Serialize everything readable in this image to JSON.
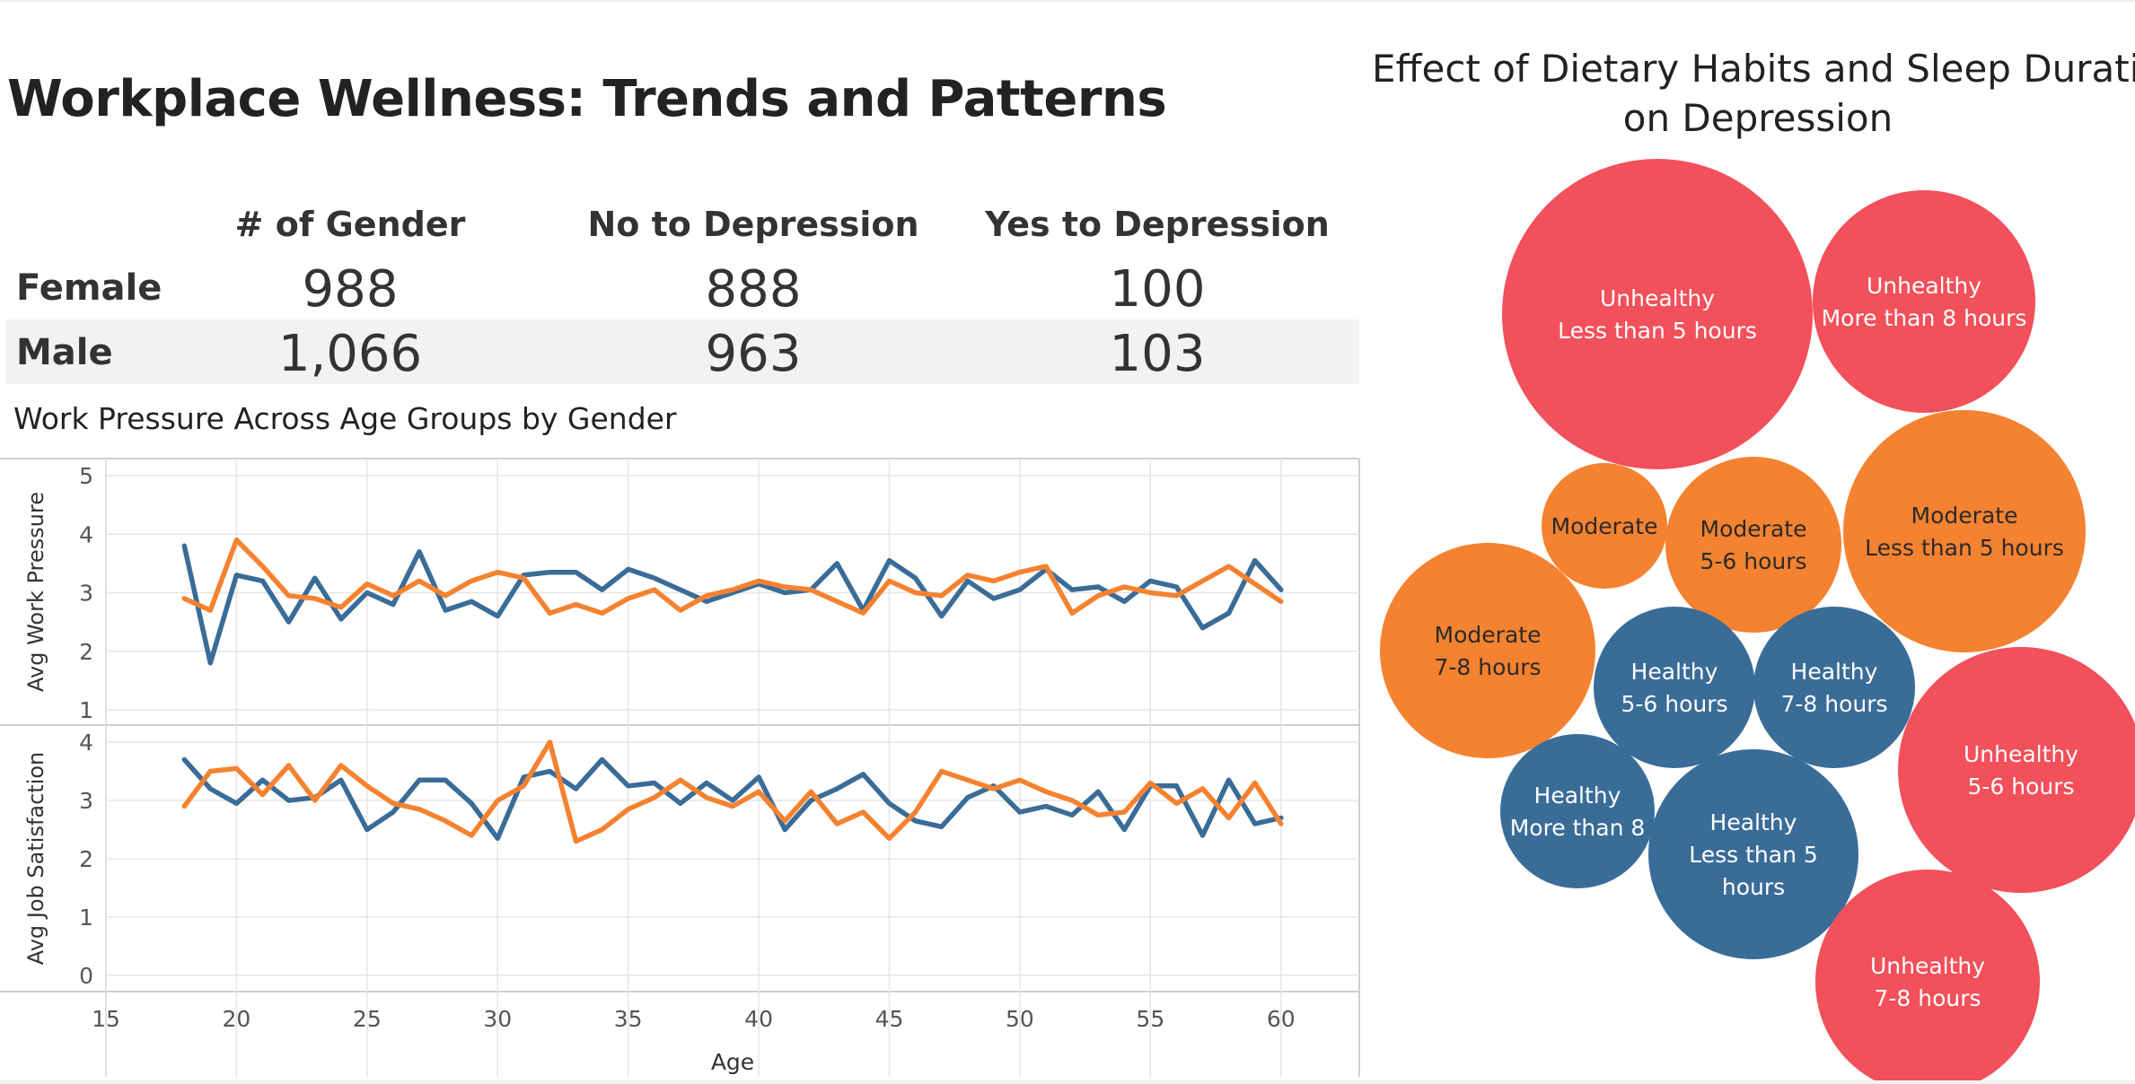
{
  "dashboard": {
    "title": "Workplace Wellness: Trends and Patterns"
  },
  "summary_table": {
    "columns": [
      "# of Gender",
      "No to Depression",
      "Yes to Depression"
    ],
    "rows": [
      {
        "label": "Female",
        "values": [
          "988",
          "888",
          "100"
        ]
      },
      {
        "label": "Male",
        "values": [
          "1,066",
          "963",
          "103"
        ]
      }
    ]
  },
  "colors": {
    "male": "#3a6c98",
    "female": "#f58230",
    "unhealthy": "#f2505a",
    "moderate": "#f58230",
    "healthy": "#3a6c98",
    "grid": "#e6e6e6",
    "axis_text": "#555555"
  },
  "chart_data": [
    {
      "type": "line",
      "title": "Work Pressure Across Age Groups by Gender",
      "xlabel": "Age",
      "x_ticks": [
        15,
        20,
        25,
        30,
        35,
        40,
        45,
        50,
        55,
        60
      ],
      "x": [
        18,
        19,
        20,
        21,
        22,
        23,
        24,
        25,
        26,
        27,
        28,
        29,
        30,
        31,
        32,
        33,
        34,
        35,
        36,
        37,
        38,
        39,
        40,
        41,
        42,
        43,
        44,
        45,
        46,
        47,
        48,
        49,
        50,
        51,
        52,
        53,
        54,
        55,
        56,
        57,
        58,
        59,
        60
      ],
      "xlim": [
        15,
        63
      ],
      "panels": [
        {
          "ylabel": "Avg Work Pressure",
          "ylim": [
            1,
            5
          ],
          "y_ticks": [
            1,
            2,
            3,
            4,
            5
          ],
          "series": [
            {
              "color": "#3a6c98",
              "values": [
                3.8,
                1.8,
                3.3,
                3.2,
                2.5,
                3.25,
                2.55,
                3.0,
                2.8,
                3.7,
                2.7,
                2.85,
                2.6,
                3.3,
                3.35,
                3.35,
                3.05,
                3.4,
                3.25,
                3.05,
                2.85,
                3.0,
                3.15,
                3.0,
                3.05,
                3.5,
                2.7,
                3.55,
                3.25,
                2.6,
                3.2,
                2.9,
                3.05,
                3.4,
                3.05,
                3.1,
                2.85,
                3.2,
                3.1,
                2.4,
                2.65,
                3.55,
                3.05
              ]
            },
            {
              "color": "#f58230",
              "values": [
                2.9,
                2.7,
                3.9,
                3.45,
                2.95,
                2.9,
                2.75,
                3.15,
                2.95,
                3.2,
                2.95,
                3.2,
                3.35,
                3.25,
                2.65,
                2.8,
                2.65,
                2.9,
                3.05,
                2.7,
                2.95,
                3.05,
                3.2,
                3.1,
                3.05,
                2.85,
                2.65,
                3.2,
                3.0,
                2.95,
                3.3,
                3.2,
                3.35,
                3.45,
                2.65,
                2.95,
                3.1,
                3.0,
                2.95,
                3.2,
                3.45,
                3.15,
                2.85
              ]
            }
          ]
        },
        {
          "ylabel": "Avg Job Satisfaction",
          "ylim": [
            0,
            4
          ],
          "y_ticks": [
            0,
            1,
            2,
            3,
            4
          ],
          "series": [
            {
              "color": "#3a6c98",
              "values": [
                3.7,
                3.2,
                2.95,
                3.35,
                3.0,
                3.05,
                3.35,
                2.5,
                2.8,
                3.35,
                3.35,
                2.95,
                2.35,
                3.4,
                3.5,
                3.2,
                3.7,
                3.25,
                3.3,
                2.95,
                3.3,
                3.0,
                3.4,
                2.5,
                3.0,
                3.2,
                3.45,
                2.95,
                2.65,
                2.55,
                3.05,
                3.25,
                2.8,
                2.9,
                2.75,
                3.15,
                2.5,
                3.25,
                3.25,
                2.4,
                3.35,
                2.6,
                2.7
              ]
            },
            {
              "color": "#f58230",
              "values": [
                2.9,
                3.5,
                3.55,
                3.1,
                3.6,
                3.0,
                3.6,
                3.25,
                2.95,
                2.85,
                2.65,
                2.4,
                3.0,
                3.25,
                4.0,
                2.3,
                2.5,
                2.85,
                3.05,
                3.35,
                3.05,
                2.9,
                3.15,
                2.65,
                3.15,
                2.6,
                2.8,
                2.35,
                2.8,
                3.5,
                3.35,
                3.2,
                3.35,
                3.15,
                3.0,
                2.75,
                2.8,
                3.3,
                2.95,
                3.2,
                2.7,
                3.3,
                2.6
              ]
            }
          ]
        }
      ]
    },
    {
      "type": "bubble",
      "title_lines": [
        "Effect of Dietary Habits and Sleep Duration",
        "on Depression"
      ],
      "bubbles": [
        {
          "lines": [
            "Unhealthy",
            "Less than 5 hours"
          ],
          "category": "unhealthy"
        },
        {
          "lines": [
            "Unhealthy",
            "More than 8 hours"
          ],
          "category": "unhealthy"
        },
        {
          "lines": [
            "Moderate"
          ],
          "category": "moderate"
        },
        {
          "lines": [
            "Moderate",
            "5-6 hours"
          ],
          "category": "moderate"
        },
        {
          "lines": [
            "Moderate",
            "Less than 5 hours"
          ],
          "category": "moderate"
        },
        {
          "lines": [
            "Moderate",
            "7-8 hours"
          ],
          "category": "moderate"
        },
        {
          "lines": [
            "Healthy",
            "5-6 hours"
          ],
          "category": "healthy"
        },
        {
          "lines": [
            "Healthy",
            "7-8 hours"
          ],
          "category": "healthy"
        },
        {
          "lines": [
            "Unhealthy",
            "5-6 hours"
          ],
          "category": "unhealthy"
        },
        {
          "lines": [
            "Healthy",
            "More than 8"
          ],
          "category": "healthy"
        },
        {
          "lines": [
            "Healthy",
            "Less than 5",
            "hours"
          ],
          "category": "healthy"
        },
        {
          "lines": [
            "Unhealthy",
            "7-8 hours"
          ],
          "category": "unhealthy"
        }
      ]
    }
  ]
}
